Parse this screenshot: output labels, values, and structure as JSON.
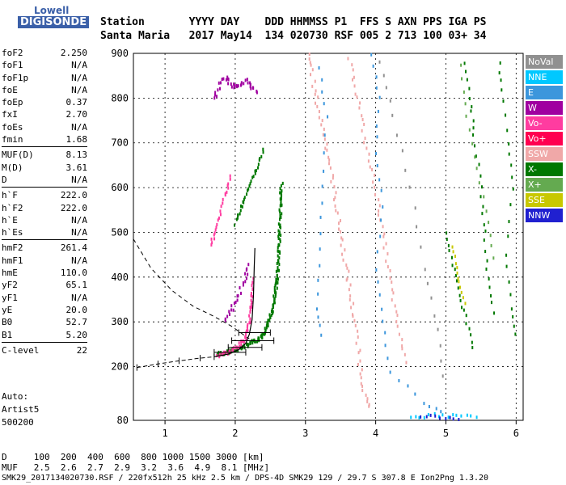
{
  "logo": {
    "line1": "Lowell",
    "line2": "DIGISONDE"
  },
  "header": {
    "labels": "Station       YYYY DAY    DDD HHMMSS P1  FFS S AXN PPS IGA PS",
    "values": "Santa Maria   2017 May14  134 020730 RSF 005 2 713 100 03+ 34"
  },
  "params": [
    [
      {
        "k": "foF2",
        "v": "2.250"
      },
      {
        "k": "foF1",
        "v": "N/A"
      },
      {
        "k": "foF1p",
        "v": "N/A"
      },
      {
        "k": "foE",
        "v": "N/A"
      },
      {
        "k": "foEp",
        "v": "0.37"
      },
      {
        "k": "fxI",
        "v": "2.70"
      },
      {
        "k": "foEs",
        "v": "N/A"
      },
      {
        "k": "fmin",
        "v": "1.68"
      }
    ],
    [
      {
        "k": "MUF(D)",
        "v": "8.13"
      },
      {
        "k": "M(D)",
        "v": "3.61"
      },
      {
        "k": "D",
        "v": "N/A"
      }
    ],
    [
      {
        "k": "h`F",
        "v": "222.0"
      },
      {
        "k": "h`F2",
        "v": "222.0"
      },
      {
        "k": "h`E",
        "v": "N/A"
      },
      {
        "k": "h`Es",
        "v": "N/A"
      }
    ],
    [
      {
        "k": "hmF2",
        "v": "261.4"
      },
      {
        "k": "hmF1",
        "v": "N/A"
      },
      {
        "k": "hmE",
        "v": "110.0"
      },
      {
        "k": "yF2",
        "v": "65.1"
      },
      {
        "k": "yF1",
        "v": "N/A"
      },
      {
        "k": "yE",
        "v": "20.0"
      },
      {
        "k": "B0",
        "v": "52.7"
      },
      {
        "k": "B1",
        "v": "5.20"
      }
    ],
    [
      {
        "k": "C-level",
        "v": "22"
      }
    ]
  ],
  "auto": {
    "l1": "Auto:",
    "l2": "Artist5",
    "l3": "500200"
  },
  "footer": {
    "d_row": "D     100  200  400  600  800 1000 1500 3000 [km]",
    "muf_row": "MUF   2.5  2.6  2.7  2.9  3.2  3.6  4.9  8.1 [MHz]",
    "file_row": "SMK29_2017134020730.RSF / 220fx512h 25 kHz 2.5 km / DPS-4D SMK29 129 / 29.7 S 307.8 E Ion2Png 1.3.20"
  },
  "legend": [
    {
      "label": "NoVal",
      "color": "#909090"
    },
    {
      "label": "NNE",
      "color": "#00c8ff"
    },
    {
      "label": "E",
      "color": "#3c96dc"
    },
    {
      "label": "W",
      "color": "#a000a0"
    },
    {
      "label": "Vo-",
      "color": "#ff3ca0"
    },
    {
      "label": "Vo+",
      "color": "#ff0050"
    },
    {
      "label": "SSW",
      "color": "#f0a8a8"
    },
    {
      "label": "X-",
      "color": "#007800"
    },
    {
      "label": "X+",
      "color": "#64aa50"
    },
    {
      "label": "SSE",
      "color": "#c8c800"
    },
    {
      "label": "NNW",
      "color": "#2020d0"
    }
  ],
  "chart_data": {
    "type": "scatter",
    "xlim": [
      0.55,
      6.1
    ],
    "ylim": [
      80,
      900
    ],
    "x_ticks": [
      1,
      2,
      3,
      4,
      5,
      6
    ],
    "y_ticks": [
      80,
      200,
      300,
      400,
      500,
      600,
      700,
      800,
      900
    ],
    "grid": true,
    "profile_dashed": [
      [
        0.55,
        485
      ],
      [
        0.8,
        420
      ],
      [
        1.1,
        370
      ],
      [
        1.4,
        335
      ],
      [
        1.7,
        312
      ],
      [
        1.95,
        290
      ],
      [
        2.2,
        262
      ]
    ],
    "trace_dashed": [
      [
        0.6,
        198
      ],
      [
        0.9,
        206
      ],
      [
        1.2,
        213
      ],
      [
        1.5,
        219
      ],
      [
        1.7,
        222
      ]
    ],
    "trace_solid": [
      [
        1.7,
        222
      ],
      [
        1.9,
        228
      ],
      [
        2.05,
        238
      ],
      [
        2.15,
        252
      ],
      [
        2.2,
        272
      ],
      [
        2.24,
        305
      ],
      [
        2.26,
        360
      ],
      [
        2.27,
        420
      ],
      [
        2.28,
        465
      ]
    ],
    "error_bars": [
      {
        "x": 1.92,
        "y": 232,
        "lo": 1.7,
        "hi": 2.15
      },
      {
        "x": 2.1,
        "y": 243,
        "lo": 1.9,
        "hi": 2.38
      },
      {
        "x": 2.22,
        "y": 258,
        "lo": 1.95,
        "hi": 2.55
      },
      {
        "x": 2.28,
        "y": 276,
        "lo": 2.05,
        "hi": 2.5
      }
    ],
    "clusters": [
      {
        "color": "#007800",
        "pts": [
          [
            1.75,
            228
          ],
          [
            1.9,
            232
          ],
          [
            2.05,
            240
          ],
          [
            2.2,
            250
          ],
          [
            2.35,
            262
          ],
          [
            2.45,
            285
          ],
          [
            2.52,
            320
          ],
          [
            2.57,
            365
          ],
          [
            2.6,
            400
          ],
          [
            2.62,
            450
          ],
          [
            2.63,
            500
          ],
          [
            2.65,
            560
          ],
          [
            2.66,
            610
          ]
        ],
        "spread": 0.04,
        "n": 14
      },
      {
        "color": "#007800",
        "pts": [
          [
            2.0,
            520
          ],
          [
            2.1,
            560
          ],
          [
            2.2,
            600
          ],
          [
            2.3,
            640
          ],
          [
            2.42,
            690
          ]
        ],
        "spread": 0.03,
        "n": 8
      },
      {
        "color": "#ff3ca0",
        "pts": [
          [
            1.75,
            225
          ],
          [
            1.9,
            232
          ],
          [
            2.05,
            245
          ],
          [
            2.15,
            265
          ],
          [
            2.2,
            300
          ],
          [
            2.23,
            350
          ],
          [
            2.25,
            400
          ]
        ],
        "spread": 0.03,
        "n": 10
      },
      {
        "color": "#ff3ca0",
        "pts": [
          [
            1.65,
            470
          ],
          [
            1.75,
            520
          ],
          [
            1.85,
            580
          ],
          [
            1.95,
            630
          ]
        ],
        "spread": 0.03,
        "n": 8
      },
      {
        "color": "#a000a0",
        "pts": [
          [
            1.85,
            300
          ],
          [
            1.95,
            330
          ],
          [
            2.05,
            360
          ],
          [
            2.15,
            400
          ],
          [
            2.2,
            430
          ]
        ],
        "spread": 0.05,
        "n": 6
      },
      {
        "color": "#a000a0",
        "pts": [
          [
            1.7,
            800
          ],
          [
            1.85,
            850
          ],
          [
            2.0,
            820
          ],
          [
            2.15,
            840
          ],
          [
            2.3,
            810
          ]
        ],
        "spread": 0.08,
        "n": 10
      },
      {
        "color": "#f0a8a8",
        "pts": [
          [
            3.05,
            900
          ],
          [
            3.15,
            800
          ],
          [
            3.3,
            700
          ],
          [
            3.4,
            600
          ],
          [
            3.5,
            500
          ],
          [
            3.6,
            400
          ],
          [
            3.7,
            300
          ],
          [
            3.8,
            180
          ],
          [
            3.9,
            100
          ]
        ],
        "spread": 0.06,
        "n": 10
      },
      {
        "color": "#f0a8a8",
        "pts": [
          [
            3.6,
            900
          ],
          [
            3.75,
            800
          ],
          [
            3.85,
            700
          ],
          [
            4.0,
            600
          ],
          [
            4.1,
            500
          ],
          [
            4.2,
            400
          ],
          [
            4.3,
            300
          ],
          [
            4.45,
            200
          ]
        ],
        "spread": 0.05,
        "n": 8
      },
      {
        "color": "#3c96dc",
        "pts": [
          [
            3.2,
            870
          ],
          [
            3.3,
            760
          ],
          [
            3.25,
            600
          ],
          [
            3.2,
            460
          ],
          [
            3.15,
            330
          ],
          [
            3.25,
            250
          ]
        ],
        "spread": 0.03,
        "n": 4
      },
      {
        "color": "#3c96dc",
        "pts": [
          [
            3.95,
            900
          ],
          [
            4.05,
            800
          ],
          [
            4.0,
            680
          ],
          [
            4.1,
            560
          ],
          [
            4.0,
            420
          ],
          [
            4.1,
            300
          ],
          [
            4.2,
            190
          ],
          [
            4.7,
            120
          ],
          [
            5.0,
            90
          ]
        ],
        "spread": 0.03,
        "n": 4
      },
      {
        "color": "#909090",
        "pts": [
          [
            4.05,
            880
          ],
          [
            4.25,
            760
          ],
          [
            4.5,
            600
          ],
          [
            4.7,
            420
          ],
          [
            4.9,
            280
          ],
          [
            5.0,
            150
          ]
        ],
        "spread": 0.04,
        "n": 4
      },
      {
        "color": "#007800",
        "pts": [
          [
            5.25,
            900
          ],
          [
            5.35,
            800
          ],
          [
            5.4,
            720
          ],
          [
            5.5,
            600
          ],
          [
            5.55,
            500
          ],
          [
            5.6,
            400
          ],
          [
            5.7,
            300
          ]
        ],
        "spread": 0.03,
        "n": 5
      },
      {
        "color": "#007800",
        "pts": [
          [
            5.0,
            500
          ],
          [
            5.1,
            430
          ],
          [
            5.2,
            360
          ],
          [
            5.3,
            300
          ],
          [
            5.4,
            230
          ]
        ],
        "spread": 0.03,
        "n": 5
      },
      {
        "color": "#007800",
        "pts": [
          [
            5.75,
            900
          ],
          [
            5.8,
            820
          ],
          [
            5.9,
            700
          ],
          [
            5.95,
            600
          ],
          [
            5.85,
            450
          ],
          [
            5.95,
            330
          ],
          [
            6.0,
            250
          ]
        ],
        "spread": 0.03,
        "n": 4
      },
      {
        "color": "#c8c800",
        "pts": [
          [
            5.1,
            470
          ],
          [
            5.15,
            420
          ],
          [
            5.2,
            380
          ],
          [
            5.3,
            330
          ]
        ],
        "spread": 0.02,
        "n": 4
      },
      {
        "color": "#64aa50",
        "pts": [
          [
            5.2,
            870
          ],
          [
            5.3,
            760
          ],
          [
            5.45,
            640
          ],
          [
            5.6,
            520
          ],
          [
            5.7,
            420
          ]
        ],
        "spread": 0.03,
        "n": 4
      },
      {
        "color": "#00c8ff",
        "pts": [
          [
            4.5,
            90
          ],
          [
            4.7,
            88
          ],
          [
            4.9,
            92
          ],
          [
            5.1,
            90
          ],
          [
            5.3,
            88
          ],
          [
            5.5,
            91
          ]
        ],
        "spread": 0.04,
        "n": 3
      },
      {
        "color": "#2020d0",
        "pts": [
          [
            4.65,
            86
          ],
          [
            4.85,
            90
          ],
          [
            5.05,
            86
          ],
          [
            5.25,
            84
          ]
        ],
        "spread": 0.03,
        "n": 3
      }
    ]
  }
}
